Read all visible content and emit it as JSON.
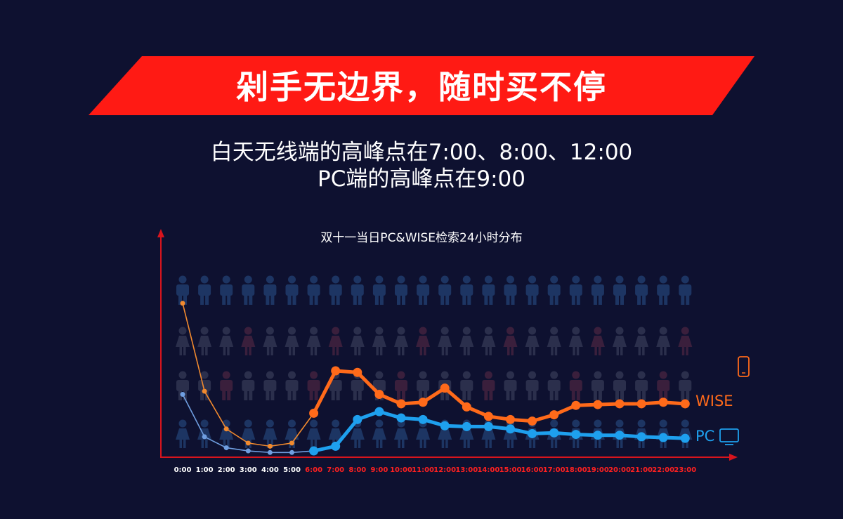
{
  "headline": "剁手无边界，随时买不停",
  "subtitle_lines": [
    "白天无线端的高峰点在7:00、8:00、12:00",
    "PC端的高峰点在9:00"
  ],
  "colors": {
    "background": "#0e1130",
    "banner_red": "#ff1a14",
    "wise_orange": "#ff6a1a",
    "pc_blue": "#1ea0ee",
    "axis_red": "#d8141d",
    "tick_night": "#ffffff",
    "tick_day": "#ff2020"
  },
  "icons": {
    "wise": "mobile-phone-icon",
    "pc": "monitor-icon",
    "background_people": [
      "person-male-icon",
      "person-female-icon"
    ]
  },
  "chart_data": {
    "type": "line",
    "title": "双十一当日PC&WISE检索24小时分布",
    "x": [
      "0:00",
      "1:00",
      "2:00",
      "3:00",
      "4:00",
      "5:00",
      "6:00",
      "7:00",
      "8:00",
      "9:00",
      "10:00",
      "11:00",
      "12:00",
      "13:00",
      "14:00",
      "15:00",
      "16:00",
      "17:00",
      "18:00",
      "19:00",
      "20:00",
      "21:00",
      "22:00",
      "23:00"
    ],
    "day_hours_from": "6:00",
    "series": [
      {
        "name": "WISE",
        "values": [
          98,
          42,
          18,
          9,
          7,
          9,
          28,
          55,
          54,
          40,
          34,
          35,
          44,
          32,
          26,
          24,
          23,
          27,
          33,
          33.5,
          34,
          34,
          35,
          34
        ]
      },
      {
        "name": "PC",
        "values": [
          40,
          13,
          6,
          4,
          3,
          3,
          4,
          7,
          24,
          29,
          25,
          24,
          20,
          19.5,
          19.5,
          18,
          15,
          15.5,
          14.5,
          14,
          14,
          13,
          12.5,
          12
        ]
      }
    ],
    "ylim": [
      0,
      110
    ],
    "grid": false,
    "legend": "right, at line ends"
  }
}
